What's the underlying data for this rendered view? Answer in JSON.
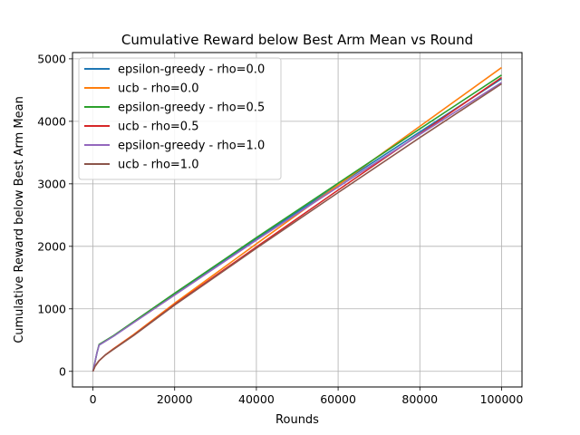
{
  "chart_data": {
    "type": "line",
    "title": "Cumulative Reward below Best Arm Mean vs Round",
    "xlabel": "Rounds",
    "ylabel": "Cumulative Reward below Best Arm Mean",
    "xlim": [
      -5000,
      105000
    ],
    "ylim": [
      -250,
      5100
    ],
    "xticks": [
      0,
      20000,
      40000,
      60000,
      80000,
      100000
    ],
    "yticks": [
      0,
      1000,
      2000,
      3000,
      4000,
      5000
    ],
    "grid": true,
    "legend_position": "top-left",
    "series": [
      {
        "name": "epsilon-greedy - rho=0.0",
        "color": "#1f77b4",
        "points": [
          [
            0,
            0
          ],
          [
            1000,
            300
          ],
          [
            1500,
            420
          ],
          [
            5000,
            560
          ],
          [
            20000,
            1230
          ],
          [
            40000,
            2120
          ],
          [
            60000,
            2980
          ],
          [
            80000,
            3830
          ],
          [
            100000,
            4680
          ]
        ]
      },
      {
        "name": "ucb - rho=0.0",
        "color": "#ff7f0e",
        "points": [
          [
            0,
            0
          ],
          [
            500,
            80
          ],
          [
            1500,
            170
          ],
          [
            3000,
            260
          ],
          [
            5000,
            360
          ],
          [
            10000,
            590
          ],
          [
            20000,
            1090
          ],
          [
            40000,
            2040
          ],
          [
            60000,
            2980
          ],
          [
            80000,
            3920
          ],
          [
            100000,
            4860
          ]
        ]
      },
      {
        "name": "epsilon-greedy - rho=0.5",
        "color": "#2ca02c",
        "points": [
          [
            0,
            0
          ],
          [
            1000,
            300
          ],
          [
            1500,
            430
          ],
          [
            5000,
            570
          ],
          [
            20000,
            1250
          ],
          [
            40000,
            2140
          ],
          [
            60000,
            3010
          ],
          [
            80000,
            3880
          ],
          [
            100000,
            4740
          ]
        ]
      },
      {
        "name": "ucb - rho=0.5",
        "color": "#d62728",
        "points": [
          [
            0,
            0
          ],
          [
            500,
            80
          ],
          [
            1500,
            170
          ],
          [
            3000,
            260
          ],
          [
            5000,
            355
          ],
          [
            10000,
            580
          ],
          [
            20000,
            1070
          ],
          [
            40000,
            1990
          ],
          [
            60000,
            2900
          ],
          [
            80000,
            3800
          ],
          [
            100000,
            4700
          ]
        ]
      },
      {
        "name": "epsilon-greedy - rho=1.0",
        "color": "#9467bd",
        "points": [
          [
            0,
            0
          ],
          [
            1000,
            300
          ],
          [
            1500,
            420
          ],
          [
            5000,
            560
          ],
          [
            20000,
            1220
          ],
          [
            40000,
            2100
          ],
          [
            60000,
            2950
          ],
          [
            80000,
            3790
          ],
          [
            100000,
            4620
          ]
        ]
      },
      {
        "name": "ucb - rho=1.0",
        "color": "#8c564b",
        "points": [
          [
            0,
            0
          ],
          [
            500,
            80
          ],
          [
            1500,
            170
          ],
          [
            3000,
            260
          ],
          [
            5000,
            350
          ],
          [
            10000,
            575
          ],
          [
            20000,
            1060
          ],
          [
            40000,
            1970
          ],
          [
            60000,
            2860
          ],
          [
            80000,
            3740
          ],
          [
            100000,
            4600
          ]
        ]
      }
    ]
  }
}
